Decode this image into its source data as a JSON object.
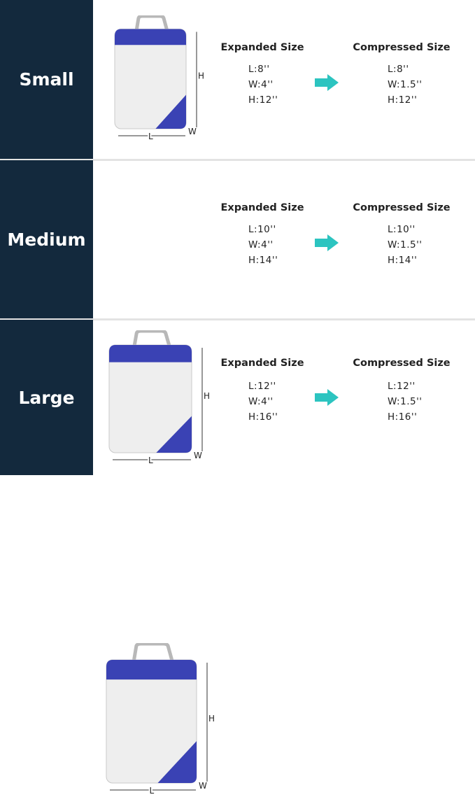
{
  "colors": {
    "panel": "#13293d",
    "bag_blue": "#3a42b4",
    "arrow": "#2cc4c0"
  },
  "dimension_labels": {
    "length": "L",
    "width": "W",
    "height": "H"
  },
  "rows": [
    {
      "name": "Small",
      "expanded_title": "Expanded Size",
      "compressed_title": "Compressed Size",
      "expanded": [
        "L:8''",
        "W:4''",
        "H:12''"
      ],
      "compressed": [
        "L:8''",
        "W:1.5''",
        "H:12''"
      ]
    },
    {
      "name": "Medium",
      "expanded_title": "Expanded Size",
      "compressed_title": "Compressed Size",
      "expanded": [
        "L:10''",
        "W:4''",
        "H:14''"
      ],
      "compressed": [
        "L:10''",
        "W:1.5''",
        "H:14''"
      ]
    },
    {
      "name": "Large",
      "expanded_title": "Expanded Size",
      "compressed_title": "Compressed Size",
      "expanded": [
        "L:12''",
        "W:4''",
        "H:16''"
      ],
      "compressed": [
        "L:12''",
        "W:1.5''",
        "H:16''"
      ]
    }
  ]
}
